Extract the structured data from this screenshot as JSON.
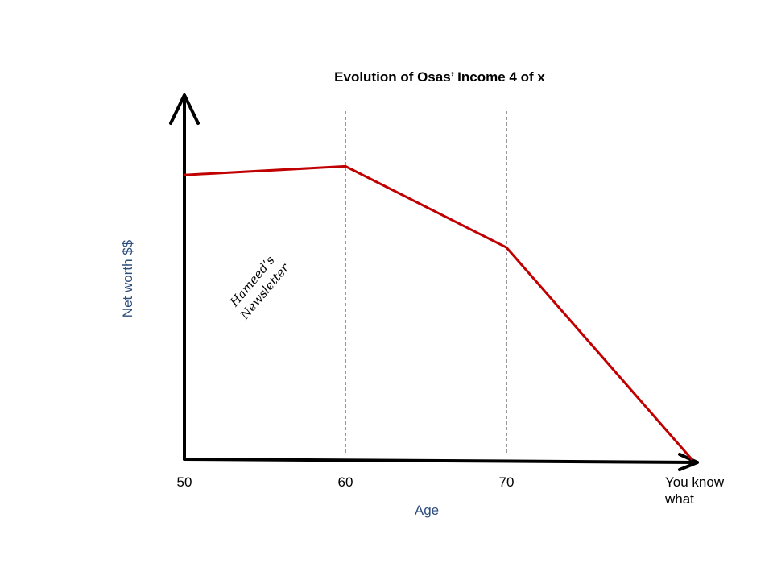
{
  "chart_data": {
    "type": "line",
    "title": "Evolution of Osas’ Income 4 of x",
    "xlabel": "Age",
    "ylabel": "Net worth $$",
    "categories": [
      "50",
      "60",
      "70",
      "You know what"
    ],
    "x_tick_lines": [
      [
        "50"
      ],
      [
        "60"
      ],
      [
        "70"
      ],
      [
        "You know",
        "what"
      ]
    ],
    "x_positions": [
      0,
      1,
      2,
      3.15
    ],
    "values": [
      98,
      101,
      73,
      0
    ],
    "ylim": [
      0,
      125
    ],
    "grid": false,
    "vertical_markers_at": [
      1,
      2
    ],
    "line_color": "#c00000",
    "axis_label_color": "#2e4e7e"
  },
  "watermark": {
    "lines": [
      "Hameed’s",
      "Newsletter"
    ]
  }
}
